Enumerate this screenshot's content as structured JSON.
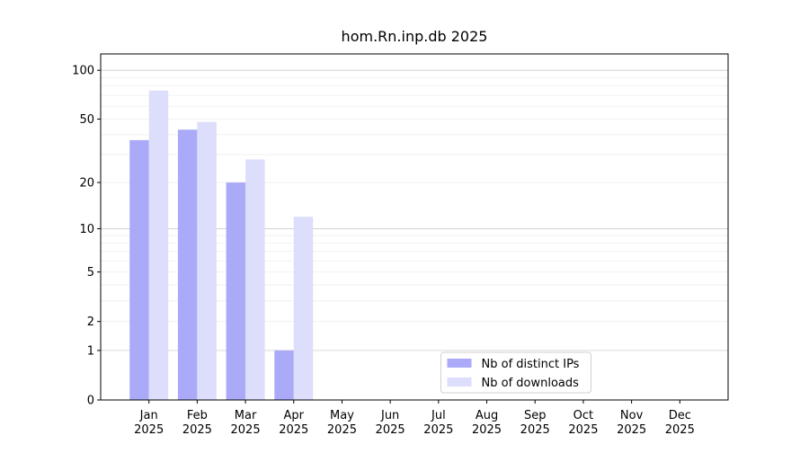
{
  "chart_data": {
    "type": "bar",
    "title": "hom.Rn.inp.db 2025",
    "categories": [
      "Jan 2025",
      "Feb 2025",
      "Mar 2025",
      "Apr 2025",
      "May 2025",
      "Jun 2025",
      "Jul 2025",
      "Aug 2025",
      "Sep 2025",
      "Oct 2025",
      "Nov 2025",
      "Dec 2025"
    ],
    "series": [
      {
        "name": "Nb of distinct IPs",
        "color": "#aaaaf8",
        "values": [
          37,
          43,
          20,
          1,
          null,
          null,
          null,
          null,
          null,
          null,
          null,
          null
        ]
      },
      {
        "name": "Nb of downloads",
        "color": "#ddddfc",
        "values": [
          75,
          48,
          28,
          12,
          null,
          null,
          null,
          null,
          null,
          null,
          null,
          null
        ]
      }
    ],
    "scale": "log1p",
    "ylim": [
      0,
      126
    ],
    "yticks": [
      0,
      1,
      2,
      5,
      10,
      20,
      50,
      100
    ],
    "yticks_minor": [
      3,
      4,
      6,
      7,
      8,
      9,
      30,
      40,
      60,
      70,
      80,
      90
    ],
    "grid": true,
    "legend": "lower center"
  }
}
